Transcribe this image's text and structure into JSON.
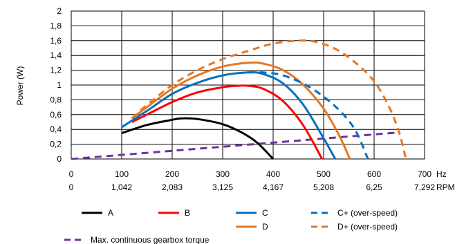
{
  "chart_data": {
    "type": "line",
    "ylabel": "Power (W)",
    "x_unit_label": "Hz",
    "x2_unit_label": "RPM",
    "xlim": [
      0,
      700
    ],
    "ylim": [
      0,
      2
    ],
    "grid": true,
    "x_ticks": [
      {
        "value": 0,
        "label": "0",
        "label2": "0"
      },
      {
        "value": 100,
        "label": "100",
        "label2": "1,042"
      },
      {
        "value": 200,
        "label": "200",
        "label2": "2,083"
      },
      {
        "value": 300,
        "label": "300",
        "label2": "3,125"
      },
      {
        "value": 400,
        "label": "400",
        "label2": "4,167"
      },
      {
        "value": 500,
        "label": "500",
        "label2": "5,208"
      },
      {
        "value": 600,
        "label": "600",
        "label2": "6,25"
      },
      {
        "value": 700,
        "label": "700",
        "label2": "7,292"
      }
    ],
    "y_ticks": [
      {
        "value": 0,
        "label": "0"
      },
      {
        "value": 0.2,
        "label": "0,2"
      },
      {
        "value": 0.4,
        "label": "0,4"
      },
      {
        "value": 0.6,
        "label": "0,6"
      },
      {
        "value": 0.8,
        "label": "0,8"
      },
      {
        "value": 1.0,
        "label": "1"
      },
      {
        "value": 1.2,
        "label": "1,2"
      },
      {
        "value": 1.4,
        "label": "1,4"
      },
      {
        "value": 1.6,
        "label": "1,6"
      },
      {
        "value": 1.8,
        "label": "1,8"
      },
      {
        "value": 2.0,
        "label": "2"
      }
    ],
    "legend_position": "bottom",
    "series": [
      {
        "name": "A",
        "color": "#000000",
        "dash": "solid",
        "points": [
          [
            100,
            0.35
          ],
          [
            150,
            0.46
          ],
          [
            200,
            0.53
          ],
          [
            220,
            0.55
          ],
          [
            250,
            0.54
          ],
          [
            300,
            0.47
          ],
          [
            340,
            0.35
          ],
          [
            370,
            0.21
          ],
          [
            400,
            0.0
          ]
        ]
      },
      {
        "name": "B",
        "color": "#ff0000",
        "dash": "solid",
        "points": [
          [
            120,
            0.5
          ],
          [
            150,
            0.6
          ],
          [
            200,
            0.77
          ],
          [
            250,
            0.9
          ],
          [
            300,
            0.97
          ],
          [
            330,
            0.99
          ],
          [
            350,
            0.99
          ],
          [
            380,
            0.95
          ],
          [
            420,
            0.78
          ],
          [
            460,
            0.45
          ],
          [
            497,
            0.0
          ]
        ]
      },
      {
        "name": "C",
        "color": "#0070c0",
        "dash": "solid",
        "points": [
          [
            100,
            0.43
          ],
          [
            150,
            0.65
          ],
          [
            200,
            0.88
          ],
          [
            250,
            1.03
          ],
          [
            300,
            1.13
          ],
          [
            350,
            1.17
          ],
          [
            380,
            1.15
          ],
          [
            420,
            1.02
          ],
          [
            460,
            0.73
          ],
          [
            500,
            0.28
          ],
          [
            523,
            0.0
          ]
        ]
      },
      {
        "name": "C+ (over-speed)",
        "color": "#0070c0",
        "dash": "dashed",
        "points": [
          [
            350,
            1.17
          ],
          [
            380,
            1.17
          ],
          [
            420,
            1.13
          ],
          [
            470,
            0.98
          ],
          [
            520,
            0.73
          ],
          [
            560,
            0.42
          ],
          [
            588,
            0.0
          ]
        ]
      },
      {
        "name": "D",
        "color": "#e87722",
        "dash": "solid",
        "points": [
          [
            120,
            0.55
          ],
          [
            150,
            0.7
          ],
          [
            200,
            0.95
          ],
          [
            250,
            1.13
          ],
          [
            300,
            1.25
          ],
          [
            350,
            1.3
          ],
          [
            380,
            1.29
          ],
          [
            420,
            1.2
          ],
          [
            460,
            1.0
          ],
          [
            500,
            0.68
          ],
          [
            530,
            0.33
          ],
          [
            552,
            0.0
          ]
        ]
      },
      {
        "name": "D+ (over-speed)",
        "color": "#e87722",
        "dash": "dashed",
        "points": [
          [
            120,
            0.55
          ],
          [
            150,
            0.73
          ],
          [
            200,
            1.0
          ],
          [
            250,
            1.2
          ],
          [
            300,
            1.35
          ],
          [
            350,
            1.46
          ],
          [
            400,
            1.56
          ],
          [
            450,
            1.6
          ],
          [
            480,
            1.59
          ],
          [
            520,
            1.5
          ],
          [
            560,
            1.32
          ],
          [
            600,
            1.05
          ],
          [
            630,
            0.7
          ],
          [
            650,
            0.35
          ],
          [
            663,
            0.0
          ]
        ]
      },
      {
        "name": "Max. continuous gearbox torque",
        "color": "#7030a0",
        "dash": "dashed",
        "points": [
          [
            0,
            0.0
          ],
          [
            650,
            0.36
          ]
        ]
      }
    ]
  }
}
